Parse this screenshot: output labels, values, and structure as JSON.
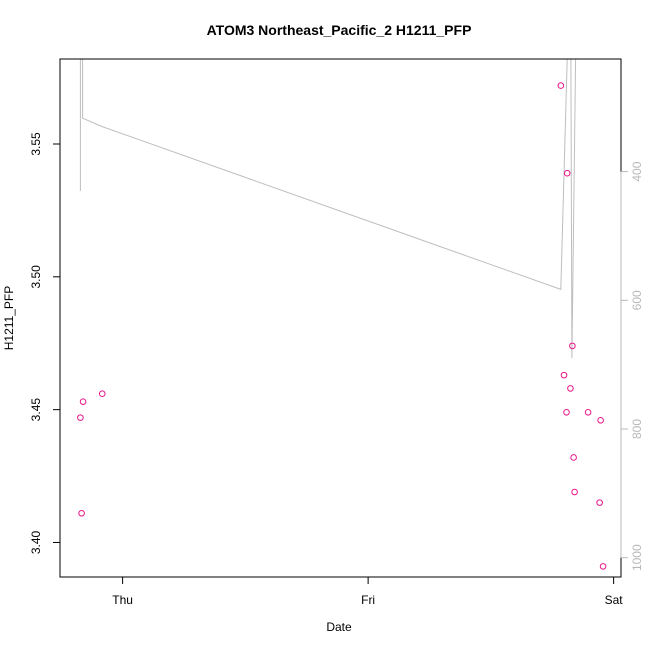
{
  "chart_data": {
    "type": "scatter",
    "title": "ATOM3 Northeast_Pacific_2 H1211_PFP",
    "xlabel": "Date",
    "ylabel": "H1211_PFP",
    "x_ticks": [
      {
        "label": "Thu",
        "value": 0.0
      },
      {
        "label": "Fri",
        "value": 1.0
      },
      {
        "label": "Sat",
        "value": 2.0
      }
    ],
    "xlim": [
      -0.255,
      2.03
    ],
    "ylim": [
      3.387,
      3.582
    ],
    "y_ticks": [
      3.4,
      3.45,
      3.5,
      3.55
    ],
    "y_tick_labels": [
      "3.40",
      "3.45",
      "3.50",
      "3.55"
    ],
    "y2lim": [
      1030,
      225
    ],
    "y2_ticks": [
      400,
      600,
      800,
      1000
    ],
    "y2_tick_labels": [
      "400",
      "600",
      "800",
      "1000"
    ],
    "grid": false,
    "points_color": "#e8168a",
    "line_color": "#bebebe",
    "axis_color_right": "#b8b8b8",
    "series": [
      {
        "kind": "points",
        "values": [
          {
            "x": -0.172,
            "y": 3.447
          },
          {
            "x": -0.167,
            "y": 3.411
          },
          {
            "x": -0.161,
            "y": 3.453
          },
          {
            "x": -0.083,
            "y": 3.456
          },
          {
            "x": 1.785,
            "y": 3.572
          },
          {
            "x": 1.798,
            "y": 3.463
          },
          {
            "x": 1.808,
            "y": 3.449
          },
          {
            "x": 1.811,
            "y": 3.539
          },
          {
            "x": 1.824,
            "y": 3.458
          },
          {
            "x": 1.832,
            "y": 3.474
          },
          {
            "x": 1.837,
            "y": 3.432
          },
          {
            "x": 1.841,
            "y": 3.419
          },
          {
            "x": 1.896,
            "y": 3.449
          },
          {
            "x": 1.943,
            "y": 3.415
          },
          {
            "x": 1.947,
            "y": 3.446
          },
          {
            "x": 1.957,
            "y": 3.391
          }
        ]
      },
      {
        "kind": "line",
        "axis": "right",
        "values": [
          {
            "x": -0.172,
            "y": 430
          },
          {
            "x": -0.172,
            "y": 225
          },
          {
            "x": -0.163,
            "y": 225
          },
          {
            "x": -0.163,
            "y": 317
          },
          {
            "x": -0.083,
            "y": 330
          },
          {
            "x": 1.785,
            "y": 583
          },
          {
            "x": 1.811,
            "y": 225
          },
          {
            "x": 1.826,
            "y": 225
          },
          {
            "x": 1.83,
            "y": 690
          },
          {
            "x": 1.845,
            "y": 225
          },
          {
            "x": 1.852,
            "y": 225
          }
        ]
      }
    ]
  }
}
